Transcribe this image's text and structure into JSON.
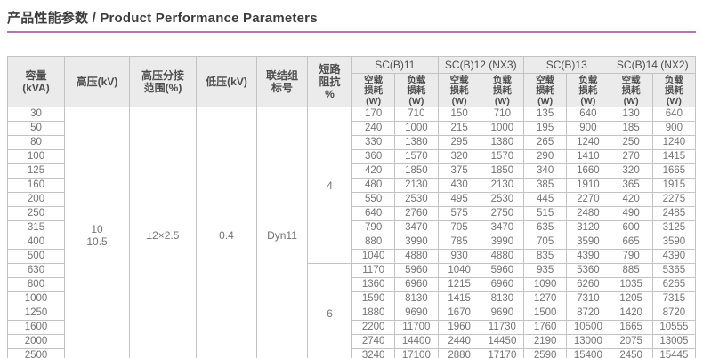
{
  "header": {
    "title_zh": "产品性能参数",
    "separator": " / ",
    "title_en": "Product Performance Parameters",
    "accent_color": "#b573b5"
  },
  "table": {
    "left_headers": {
      "capacity": "容量\n(kVA)",
      "hv": "高压(kV)",
      "tap_range": "高压分接\n范围(%)",
      "lv": "低压(kV)",
      "vector_group": "联结组\n标号",
      "impedance": "短路\n阻抗\n%"
    },
    "groups": [
      "SC(B)11",
      "SC(B)12 (NX3)",
      "SC(B)13",
      "SC(B)14 (NX2)"
    ],
    "sub_headers": {
      "no_load": "空载\n损耗\n(W)",
      "load": "负载\n损耗\n(W)"
    },
    "merged": {
      "hv": "10\n10.5",
      "tap_range": "±2×2.5",
      "lv": "0.4",
      "vector_group": "Dyn11",
      "impedance": [
        {
          "value": "4",
          "rows": 11
        },
        {
          "value": "6",
          "rows": 7
        }
      ]
    },
    "rows": [
      {
        "kva": "30",
        "values": [
          170,
          710,
          150,
          710,
          135,
          640,
          130,
          640
        ]
      },
      {
        "kva": "50",
        "values": [
          240,
          1000,
          215,
          1000,
          195,
          900,
          185,
          900
        ]
      },
      {
        "kva": "80",
        "values": [
          330,
          1380,
          295,
          1380,
          265,
          1240,
          250,
          1240
        ]
      },
      {
        "kva": "100",
        "values": [
          360,
          1570,
          320,
          1570,
          290,
          1410,
          270,
          1415
        ]
      },
      {
        "kva": "125",
        "values": [
          420,
          1850,
          375,
          1850,
          340,
          1660,
          320,
          1665
        ]
      },
      {
        "kva": "160",
        "values": [
          480,
          2130,
          430,
          2130,
          385,
          1910,
          365,
          1915
        ]
      },
      {
        "kva": "200",
        "values": [
          550,
          2530,
          495,
          2530,
          445,
          2270,
          420,
          2275
        ]
      },
      {
        "kva": "250",
        "values": [
          640,
          2760,
          575,
          2750,
          515,
          2480,
          490,
          2485
        ]
      },
      {
        "kva": "315",
        "values": [
          790,
          3470,
          705,
          3470,
          635,
          3120,
          600,
          3125
        ]
      },
      {
        "kva": "400",
        "values": [
          880,
          3990,
          785,
          3990,
          705,
          3590,
          665,
          3590
        ]
      },
      {
        "kva": "500",
        "values": [
          1040,
          4880,
          930,
          4880,
          835,
          4390,
          790,
          4390
        ]
      },
      {
        "kva": "630",
        "values": [
          1170,
          5960,
          1040,
          5960,
          935,
          5360,
          885,
          5365
        ]
      },
      {
        "kva": "800",
        "values": [
          1360,
          6960,
          1215,
          6960,
          1090,
          6260,
          1035,
          6265
        ]
      },
      {
        "kva": "1000",
        "values": [
          1590,
          8130,
          1415,
          8130,
          1270,
          7310,
          1205,
          7315
        ]
      },
      {
        "kva": "1250",
        "values": [
          1880,
          9690,
          1670,
          9690,
          1500,
          8720,
          1420,
          8720
        ]
      },
      {
        "kva": "1600",
        "values": [
          2200,
          11700,
          1960,
          11730,
          1760,
          10500,
          1665,
          10555
        ]
      },
      {
        "kva": "2000",
        "values": [
          2740,
          14400,
          2440,
          14450,
          2190,
          13000,
          2075,
          13005
        ]
      },
      {
        "kva": "2500",
        "values": [
          3240,
          17100,
          2880,
          17170,
          2590,
          15400,
          2450,
          15445
        ]
      }
    ]
  }
}
